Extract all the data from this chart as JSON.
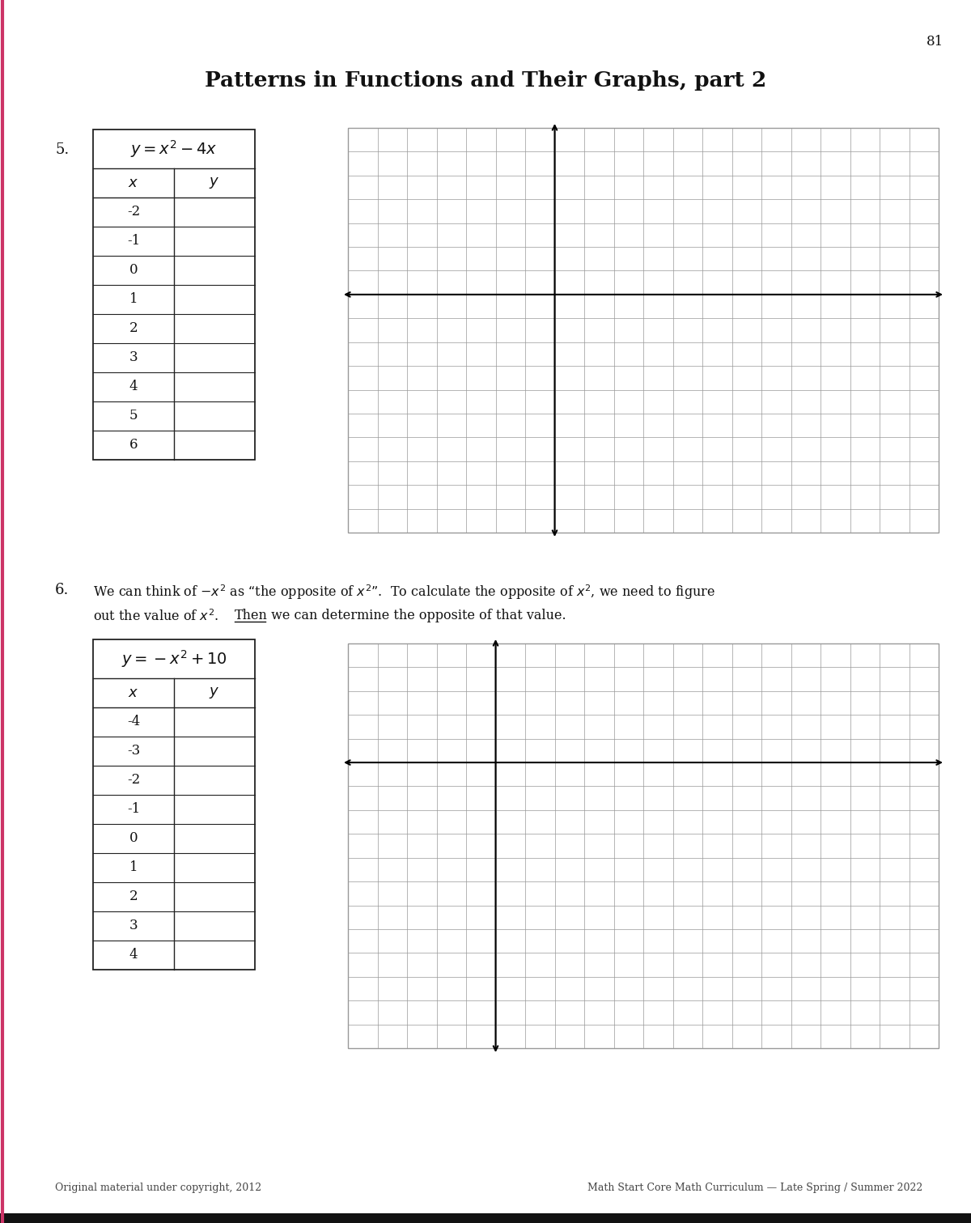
{
  "page_number": "81",
  "title": "Patterns in Functions and Their Graphs, part 2",
  "title_fontsize": 19,
  "background_color": "#ffffff",
  "section5_number": "5.",
  "section5_table_title": "$y = x^2 - 4x$",
  "section5_x_values": [
    "-2",
    "-1",
    "0",
    "1",
    "2",
    "3",
    "4",
    "5",
    "6"
  ],
  "section6_number": "6.",
  "section6_line1": "We can think of $-x^2$ as “the opposite of $x^{2}$”.  To calculate the opposite of $x^2$, we need to figure",
  "section6_line2a": "out the value of $x^2$.",
  "section6_then": "Then",
  "section6_line2b": " we can determine the opposite of that value.",
  "section6_table_title": "$y = -x^2 + 10$",
  "section6_x_values": [
    "-4",
    "-3",
    "-2",
    "-1",
    "0",
    "1",
    "2",
    "3",
    "4"
  ],
  "footer_left": "Original material under copyright, 2012",
  "footer_right": "Math Start Core Math Curriculum — Late Spring / Summer 2022",
  "grid_color": "#999999",
  "table_border_color": "#222222",
  "text_color": "#111111",
  "page_left_mark_color": "#cc3366"
}
